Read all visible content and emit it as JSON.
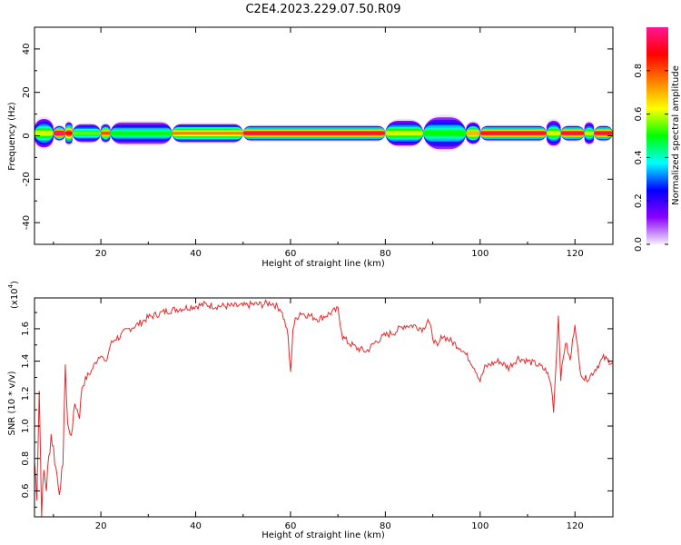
{
  "title": "C2E4.2023.229.07.50.R09",
  "chart_data": [
    {
      "type": "heatmap",
      "xlabel": "Height of straight line (km)",
      "ylabel": "Frequency (Hz)",
      "xlim": [
        6,
        128
      ],
      "ylim": [
        -50,
        50
      ],
      "x_ticks": [
        20,
        40,
        60,
        80,
        100,
        120
      ],
      "y_ticks": [
        -40,
        -20,
        0,
        20,
        40
      ],
      "band": {
        "center_hz": 1.2,
        "segments": [
          {
            "x0": 6,
            "x1": 10,
            "halfwidth": 4,
            "peak": 0.6
          },
          {
            "x0": 10,
            "x1": 12.5,
            "halfwidth": 2,
            "peak": 1.0
          },
          {
            "x0": 12.5,
            "x1": 14,
            "halfwidth": 3,
            "peak": 0.9
          },
          {
            "x0": 14,
            "x1": 20,
            "halfwidth": 2.5,
            "peak": 0.55
          },
          {
            "x0": 20,
            "x1": 22,
            "halfwidth": 2.5,
            "peak": 0.8
          },
          {
            "x0": 22,
            "x1": 35,
            "halfwidth": 3,
            "peak": 0.5
          },
          {
            "x0": 35,
            "x1": 50,
            "halfwidth": 2.5,
            "peak": 0.75
          },
          {
            "x0": 50,
            "x1": 80,
            "halfwidth": 2,
            "peak": 0.95
          },
          {
            "x0": 80,
            "x1": 88,
            "halfwidth": 3.5,
            "peak": 0.6
          },
          {
            "x0": 88,
            "x1": 97,
            "halfwidth": 4.5,
            "peak": 0.5
          },
          {
            "x0": 97,
            "x1": 100,
            "halfwidth": 3,
            "peak": 0.7
          },
          {
            "x0": 100,
            "x1": 114,
            "halfwidth": 2,
            "peak": 0.95
          },
          {
            "x0": 114,
            "x1": 117,
            "halfwidth": 3.5,
            "peak": 0.6
          },
          {
            "x0": 117,
            "x1": 122,
            "halfwidth": 2,
            "peak": 0.95
          },
          {
            "x0": 122,
            "x1": 124,
            "halfwidth": 3,
            "peak": 0.6
          },
          {
            "x0": 124,
            "x1": 128,
            "halfwidth": 2,
            "peak": 0.95
          }
        ]
      },
      "colorbar": {
        "label": "Normalized spectral amplitude",
        "range": [
          0,
          1
        ],
        "ticks": [
          "0.0",
          "0.2",
          "0.4",
          "0.6",
          "0.8"
        ],
        "colors": [
          "#f4eefc",
          "#8a00ff",
          "#0000ff",
          "#00ffff",
          "#00ff00",
          "#ffff00",
          "#ff8000",
          "#ff0000",
          "#ff1493"
        ]
      }
    },
    {
      "type": "line",
      "xlabel": "Height of straight line (km)",
      "ylabel": "SNR (10 * v/v)",
      "scale_note": "(x10",
      "scale_exp": "4",
      "scale_close": ")",
      "xlim": [
        6,
        128
      ],
      "ylim": [
        0.44,
        1.79
      ],
      "x_ticks": [
        20,
        40,
        60,
        80,
        100,
        120
      ],
      "y_ticks": [
        "0.6",
        "0.8",
        "1.0",
        "1.2",
        "1.4",
        "1.6"
      ],
      "color": "#e8292b",
      "x": [
        6,
        6.5,
        7,
        7.5,
        8,
        8.5,
        9,
        9.5,
        10,
        10.5,
        11,
        11.5,
        12,
        12.5,
        13,
        13.5,
        14,
        14.5,
        15,
        15.5,
        16,
        17,
        18,
        19,
        20,
        21,
        22,
        23,
        24,
        25,
        26,
        28,
        30,
        32,
        34,
        36,
        38,
        40,
        42,
        44,
        46,
        48,
        50,
        52,
        54,
        56,
        58,
        59,
        59.5,
        60,
        60.5,
        61,
        62,
        64,
        66,
        68,
        70,
        71,
        72,
        74,
        76,
        78,
        80,
        82,
        84,
        86,
        88,
        89,
        90,
        91,
        92,
        94,
        96,
        98,
        99,
        100,
        101,
        102,
        104,
        106,
        108,
        110,
        112,
        114,
        115,
        115.5,
        116,
        116.5,
        117,
        118,
        119,
        120,
        121,
        122,
        123,
        124,
        126,
        128
      ],
      "y": [
        0.78,
        0.58,
        1.22,
        0.48,
        0.72,
        0.62,
        0.8,
        0.95,
        0.86,
        0.74,
        0.66,
        0.58,
        0.8,
        1.36,
        1.02,
        0.93,
        1.0,
        1.14,
        1.1,
        1.06,
        1.24,
        1.3,
        1.34,
        1.4,
        1.45,
        1.38,
        1.5,
        1.54,
        1.55,
        1.58,
        1.6,
        1.63,
        1.67,
        1.69,
        1.71,
        1.72,
        1.73,
        1.74,
        1.75,
        1.74,
        1.74,
        1.74,
        1.74,
        1.75,
        1.75,
        1.76,
        1.72,
        1.62,
        1.55,
        1.32,
        1.6,
        1.65,
        1.7,
        1.68,
        1.66,
        1.69,
        1.72,
        1.55,
        1.52,
        1.48,
        1.46,
        1.52,
        1.56,
        1.58,
        1.62,
        1.62,
        1.6,
        1.66,
        1.55,
        1.48,
        1.56,
        1.52,
        1.48,
        1.4,
        1.35,
        1.28,
        1.36,
        1.38,
        1.4,
        1.36,
        1.42,
        1.4,
        1.38,
        1.34,
        1.25,
        1.1,
        1.38,
        1.68,
        1.3,
        1.52,
        1.4,
        1.64,
        1.35,
        1.29,
        1.3,
        1.34,
        1.42,
        1.39
      ]
    }
  ]
}
